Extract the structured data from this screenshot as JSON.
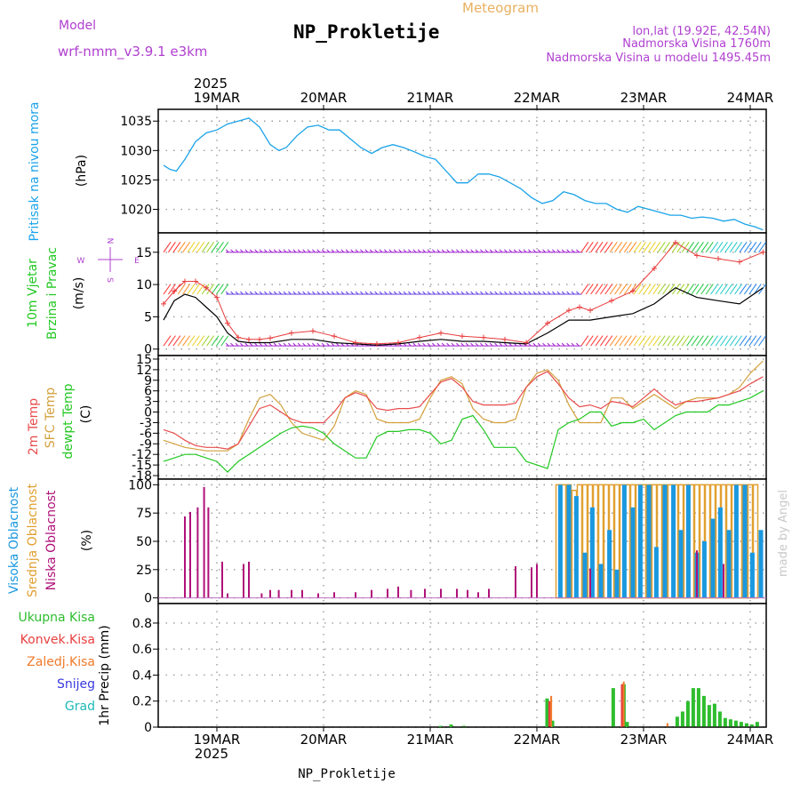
{
  "header": {
    "model_label": "Model",
    "model_name": "wrf-nmm_v3.9.1  e3km",
    "kind": "Meteogram",
    "station": "NP_Prokletije",
    "coords": "lon,lat (19.92E, 42.54N)",
    "elevation": "Nadmorska Visina 1760m",
    "model_elevation": "Nadmorska Visina u modelu 1495.45m"
  },
  "footer": {
    "station": "NP_Prokletije",
    "credit": "made by Angel"
  },
  "colors": {
    "pressure": "#1aa3e8",
    "wind_speed": "#000000",
    "wind_gust": "#e83c3c",
    "t2m": "#e84c4c",
    "tsfc": "#d4a03c",
    "dewpt": "#22c822",
    "cloud_high": "#1a98e0",
    "cloud_mid": "#e0a030",
    "cloud_low": "#b0107a",
    "precip_total": "#2ebd2e",
    "precip_conv": "#e84040",
    "precip_frozen": "#f07a2a",
    "snow": "#3a3ae0",
    "hail": "#20b8b8",
    "wind_dir_legend": "#b040d0"
  },
  "chart_data": [
    {
      "type": "line",
      "id": "pressure",
      "ylabel_main": "Pritisak na nivou mora",
      "ylabel_unit": "(hPa)",
      "ylim": [
        1016,
        1037
      ],
      "yticks": [
        1020,
        1025,
        1030,
        1035
      ],
      "x": [
        0,
        0.06,
        0.12,
        0.2,
        0.3,
        0.4,
        0.5,
        0.6,
        0.7,
        0.8,
        0.9,
        1.0,
        1.08,
        1.15,
        1.25,
        1.35,
        1.45,
        1.55,
        1.65,
        1.75,
        1.85,
        1.95,
        2.05,
        2.15,
        2.25,
        2.35,
        2.45,
        2.55,
        2.65,
        2.75,
        2.85,
        2.95,
        3.05,
        3.15,
        3.25,
        3.35,
        3.45,
        3.55,
        3.65,
        3.75,
        3.85,
        3.95,
        4.05,
        4.15,
        4.25,
        4.35,
        4.45,
        4.55,
        4.65,
        4.75,
        4.85,
        4.95,
        5.05,
        5.15,
        5.25,
        5.35,
        5.45,
        5.55,
        5.62
      ],
      "series": [
        {
          "name": "Pressure MSL",
          "values": [
            1027.5,
            1026.8,
            1026.5,
            1028.5,
            1031.5,
            1033.0,
            1033.5,
            1034.5,
            1035.0,
            1035.5,
            1034.0,
            1031.0,
            1030.0,
            1030.5,
            1032.5,
            1034.0,
            1034.3,
            1033.5,
            1033.5,
            1032.0,
            1030.5,
            1029.5,
            1030.5,
            1031.0,
            1030.5,
            1029.8,
            1029.0,
            1028.5,
            1026.5,
            1024.5,
            1024.5,
            1026.0,
            1026.0,
            1025.5,
            1024.5,
            1023.5,
            1022.0,
            1021.0,
            1021.5,
            1023.0,
            1022.5,
            1021.5,
            1021.0,
            1021.0,
            1020.0,
            1019.5,
            1020.5,
            1020.0,
            1019.5,
            1019.0,
            1019.0,
            1018.5,
            1018.7,
            1018.5,
            1018.0,
            1018.3,
            1017.5,
            1017.0,
            1016.5
          ]
        }
      ]
    },
    {
      "type": "line",
      "id": "wind",
      "ylabel_main": "10m Vjetar",
      "ylabel_sub": "Brzina i Pravac",
      "ylabel_unit": "(m/s)",
      "compass": {
        "n": "N",
        "e": "E",
        "s": "S",
        "w": "W"
      },
      "ylim": [
        -1,
        18
      ],
      "yticks": [
        0,
        5,
        10,
        15
      ],
      "x": [
        0,
        0.1,
        0.2,
        0.3,
        0.4,
        0.5,
        0.6,
        0.7,
        0.8,
        0.9,
        1.0,
        1.2,
        1.4,
        1.6,
        1.8,
        2.0,
        2.2,
        2.4,
        2.6,
        2.8,
        3.0,
        3.2,
        3.4,
        3.6,
        3.8,
        3.9,
        4.0,
        4.2,
        4.4,
        4.6,
        4.8,
        5.0,
        5.2,
        5.4,
        5.62
      ],
      "series": [
        {
          "name": "Wind speed",
          "values": [
            4.5,
            7.5,
            8.5,
            8.0,
            6.5,
            5.0,
            2.5,
            1.2,
            1.0,
            1.0,
            1.0,
            1.5,
            1.5,
            1.0,
            0.8,
            0.6,
            0.8,
            1.2,
            1.5,
            1.2,
            1.2,
            1.0,
            0.8,
            2.5,
            4.5,
            4.5,
            4.5,
            5.0,
            5.5,
            7.0,
            9.5,
            8.0,
            7.5,
            7.0,
            9.5
          ]
        },
        {
          "name": "Wind gust",
          "values": [
            7.0,
            9.0,
            10.5,
            10.5,
            9.5,
            8.0,
            4.0,
            1.8,
            1.5,
            1.5,
            1.7,
            2.5,
            2.8,
            2.0,
            1.0,
            0.8,
            1.0,
            1.8,
            2.5,
            2.0,
            1.8,
            1.5,
            1.0,
            4.0,
            6.0,
            6.5,
            6.0,
            7.5,
            9.0,
            12.5,
            16.5,
            14.5,
            14.0,
            13.5,
            15.0
          ]
        }
      ]
    },
    {
      "type": "line",
      "id": "temperature",
      "ylabel_a": "2m Temp",
      "ylabel_b": "SFC Temp",
      "ylabel_c": "dewpt Temp",
      "ylabel_unit": "(C)",
      "ylim": [
        -19,
        16
      ],
      "yticks": [
        15,
        12,
        9,
        6,
        3,
        0,
        -3,
        -6,
        -9,
        -12,
        -15,
        -18
      ],
      "x": [
        0,
        0.1,
        0.2,
        0.3,
        0.4,
        0.5,
        0.6,
        0.7,
        0.8,
        0.9,
        1.0,
        1.1,
        1.2,
        1.3,
        1.4,
        1.5,
        1.6,
        1.7,
        1.8,
        1.9,
        2.0,
        2.1,
        2.2,
        2.3,
        2.4,
        2.5,
        2.6,
        2.7,
        2.8,
        2.9,
        3.0,
        3.1,
        3.2,
        3.3,
        3.4,
        3.5,
        3.6,
        3.7,
        3.8,
        3.9,
        4.0,
        4.1,
        4.2,
        4.3,
        4.4,
        4.5,
        4.6,
        4.7,
        4.8,
        4.9,
        5.0,
        5.1,
        5.2,
        5.3,
        5.4,
        5.5,
        5.62
      ],
      "series": [
        {
          "name": "2m Temp",
          "values": [
            -5,
            -6,
            -8,
            -9.5,
            -10,
            -10,
            -10.5,
            -9,
            -4,
            1,
            2,
            0,
            -2,
            -3,
            -3,
            -3,
            0,
            4,
            5.5,
            4.5,
            1,
            0.5,
            1,
            1,
            1.5,
            5,
            8.5,
            9.5,
            7,
            3,
            2,
            2,
            2,
            2.5,
            7,
            10,
            11.5,
            8,
            4,
            1.5,
            2,
            1,
            3,
            2.5,
            1.5,
            4,
            6.5,
            4,
            2,
            3,
            3,
            3.5,
            4,
            5,
            6,
            8,
            10
          ]
        },
        {
          "name": "SFC Temp",
          "values": [
            -8,
            -9,
            -10,
            -10.5,
            -11,
            -11,
            -11,
            -9,
            -2,
            4,
            5,
            2,
            -3,
            -6,
            -7,
            -8,
            -4,
            4,
            6,
            5,
            -2,
            -3,
            -3,
            -3,
            -2,
            4,
            9,
            10,
            8,
            1,
            -2,
            -3,
            -3,
            -2,
            7,
            11,
            12,
            9,
            2,
            -3,
            -3,
            -3,
            4,
            4,
            1,
            3,
            5,
            3,
            1,
            3,
            4,
            4,
            4,
            5,
            7,
            11,
            14.5
          ]
        },
        {
          "name": "dewpt Temp",
          "values": [
            -14,
            -13,
            -12,
            -12,
            -13,
            -14,
            -17,
            -14,
            -12,
            -10,
            -8,
            -6,
            -4.5,
            -4,
            -4.5,
            -6,
            -9,
            -11,
            -13,
            -13,
            -7,
            -5.5,
            -5.5,
            -5,
            -5,
            -6,
            -9,
            -8,
            -2,
            -1,
            -5,
            -10,
            -10,
            -10,
            -14,
            -15,
            -16,
            -5,
            -3,
            -2,
            0,
            0,
            -4,
            -3,
            -3,
            -2,
            -5,
            -3,
            -1,
            0,
            0,
            0,
            2,
            2,
            3,
            4,
            6
          ]
        }
      ]
    },
    {
      "type": "bar",
      "id": "cloud",
      "ylabel_a": "Visoka Oblacnost",
      "ylabel_b": "Srednja Oblacnost",
      "ylabel_c": "Niska Oblacnost",
      "ylabel_unit": "(%)",
      "ylim": [
        -5,
        105
      ],
      "yticks": [
        0,
        25,
        50,
        75,
        100
      ],
      "series": [
        {
          "name": "Niska",
          "x": [
            0.2,
            0.25,
            0.32,
            0.38,
            0.42,
            0.55,
            0.6,
            0.75,
            0.8,
            0.92,
            1.0,
            1.08,
            1.2,
            1.3,
            1.45,
            1.6,
            1.8,
            1.95,
            2.1,
            2.2,
            2.32,
            2.45,
            2.6,
            2.75,
            2.85,
            2.95,
            3.05,
            3.3,
            3.45,
            3.5,
            4.0,
            5.0,
            5.25
          ],
          "values": [
            72,
            76,
            80,
            98,
            80,
            32,
            4,
            30,
            32,
            4,
            7,
            7,
            7,
            7,
            4,
            5,
            5,
            7,
            8,
            10,
            7,
            8,
            8,
            8,
            7,
            5,
            8,
            28,
            27,
            30,
            26,
            42,
            30
          ]
        },
        {
          "name": "Srednja",
          "x": [
            3.7,
            3.75,
            3.8,
            3.85,
            3.9,
            3.95,
            4.0,
            4.05,
            4.1,
            4.15,
            4.2,
            4.25,
            4.3,
            4.35,
            4.4,
            4.45,
            4.5,
            4.55,
            4.6,
            4.65,
            4.7,
            4.75,
            4.8,
            4.85,
            4.9,
            4.95,
            5.0,
            5.05,
            5.1,
            5.15,
            5.2,
            5.25,
            5.3,
            5.35,
            5.4,
            5.45,
            5.5,
            5.55
          ],
          "values": [
            100,
            100,
            100,
            95,
            100,
            100,
            100,
            100,
            100,
            100,
            100,
            100,
            100,
            100,
            100,
            100,
            100,
            100,
            100,
            100,
            100,
            100,
            100,
            100,
            100,
            100,
            100,
            100,
            100,
            100,
            100,
            100,
            100,
            100,
            100,
            100,
            100,
            100
          ]
        },
        {
          "name": "Visoka",
          "x": [
            3.72,
            3.8,
            3.87,
            3.95,
            4.02,
            4.1,
            4.18,
            4.25,
            4.32,
            4.4,
            4.47,
            4.55,
            4.62,
            4.7,
            4.78,
            4.85,
            4.92,
            5.0,
            5.07,
            5.15,
            5.22,
            5.3,
            5.37,
            5.45,
            5.52,
            5.6
          ],
          "values": [
            100,
            100,
            90,
            40,
            80,
            30,
            60,
            25,
            100,
            80,
            100,
            100,
            45,
            100,
            100,
            60,
            100,
            40,
            50,
            70,
            80,
            60,
            100,
            100,
            40,
            60
          ]
        }
      ]
    },
    {
      "type": "bar",
      "id": "precip",
      "ylabel_a": "Ukupna Kisa",
      "ylabel_b": "Konvek.Kisa",
      "ylabel_c": "Zaledj.Kisa",
      "ylabel_d": "Snijeg",
      "ylabel_e": "Grad",
      "ylabel_unit": "1hr Precip (mm)",
      "ylim": [
        0,
        0.95
      ],
      "yticks": [
        0,
        0.2,
        0.4,
        0.6,
        0.8
      ],
      "series": [
        {
          "name": "Ukupna Kisa",
          "x": [
            2.6,
            2.7,
            2.82,
            3.6,
            3.65,
            4.22,
            4.32,
            4.35,
            4.82,
            4.87,
            4.92,
            4.97,
            5.02,
            5.07,
            5.12,
            5.17,
            5.22,
            5.27,
            5.32,
            5.37,
            5.42,
            5.47,
            5.52,
            5.57
          ],
          "values": [
            0.01,
            0.02,
            0.01,
            0.22,
            0.05,
            0.3,
            0.33,
            0.04,
            0.08,
            0.12,
            0.2,
            0.3,
            0.3,
            0.24,
            0.17,
            0.18,
            0.12,
            0.07,
            0.06,
            0.05,
            0.04,
            0.03,
            0.02,
            0.04
          ]
        },
        {
          "name": "Konvek.Kisa",
          "x": [
            3.62,
            4.3
          ],
          "values": [
            0.2,
            0.33
          ]
        },
        {
          "name": "Zaledj.Kisa",
          "x": [
            3.63,
            4.31,
            4.72
          ],
          "values": [
            0.24,
            0.35,
            0.03
          ]
        }
      ]
    }
  ],
  "time_axis": {
    "start_year": "2025",
    "days": [
      "19MAR",
      "20MAR",
      "21MAR",
      "22MAR",
      "23MAR",
      "24MAR"
    ],
    "day_positions": [
      0.5,
      1.5,
      2.5,
      3.5,
      4.5,
      5.5
    ]
  }
}
